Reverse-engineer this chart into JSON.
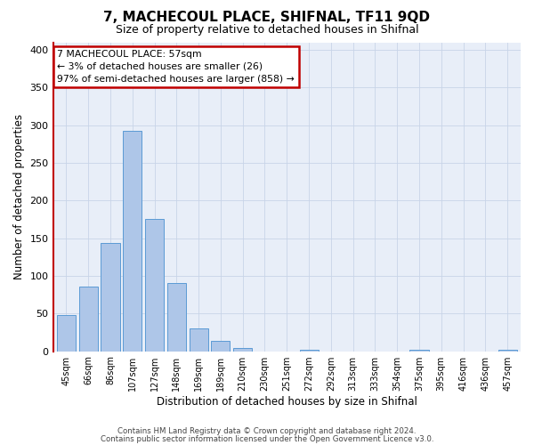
{
  "title": "7, MACHECOUL PLACE, SHIFNAL, TF11 9QD",
  "subtitle": "Size of property relative to detached houses in Shifnal",
  "xlabel": "Distribution of detached houses by size in Shifnal",
  "ylabel": "Number of detached properties",
  "bar_labels": [
    "45sqm",
    "66sqm",
    "86sqm",
    "107sqm",
    "127sqm",
    "148sqm",
    "169sqm",
    "189sqm",
    "210sqm",
    "230sqm",
    "251sqm",
    "272sqm",
    "292sqm",
    "313sqm",
    "333sqm",
    "354sqm",
    "375sqm",
    "395sqm",
    "416sqm",
    "436sqm",
    "457sqm"
  ],
  "bar_values": [
    48,
    86,
    144,
    293,
    175,
    91,
    30,
    14,
    4,
    0,
    0,
    2,
    0,
    0,
    0,
    0,
    2,
    0,
    0,
    0,
    2
  ],
  "bar_color": "#aec6e8",
  "bar_edge_color": "#5b9bd5",
  "highlight_color": "#c00000",
  "annotation_title": "7 MACHECOUL PLACE: 57sqm",
  "annotation_line1": "← 3% of detached houses are smaller (26)",
  "annotation_line2": "97% of semi-detached houses are larger (858) →",
  "annotation_box_color": "#c00000",
  "ylim": [
    0,
    410
  ],
  "yticks": [
    0,
    50,
    100,
    150,
    200,
    250,
    300,
    350,
    400
  ],
  "footer_line1": "Contains HM Land Registry data © Crown copyright and database right 2024.",
  "footer_line2": "Contains public sector information licensed under the Open Government Licence v3.0.",
  "background_color": "#ffffff",
  "plot_bg_color": "#e8eef8",
  "grid_color": "#c8d4e8",
  "title_fontsize": 11,
  "subtitle_fontsize": 9
}
